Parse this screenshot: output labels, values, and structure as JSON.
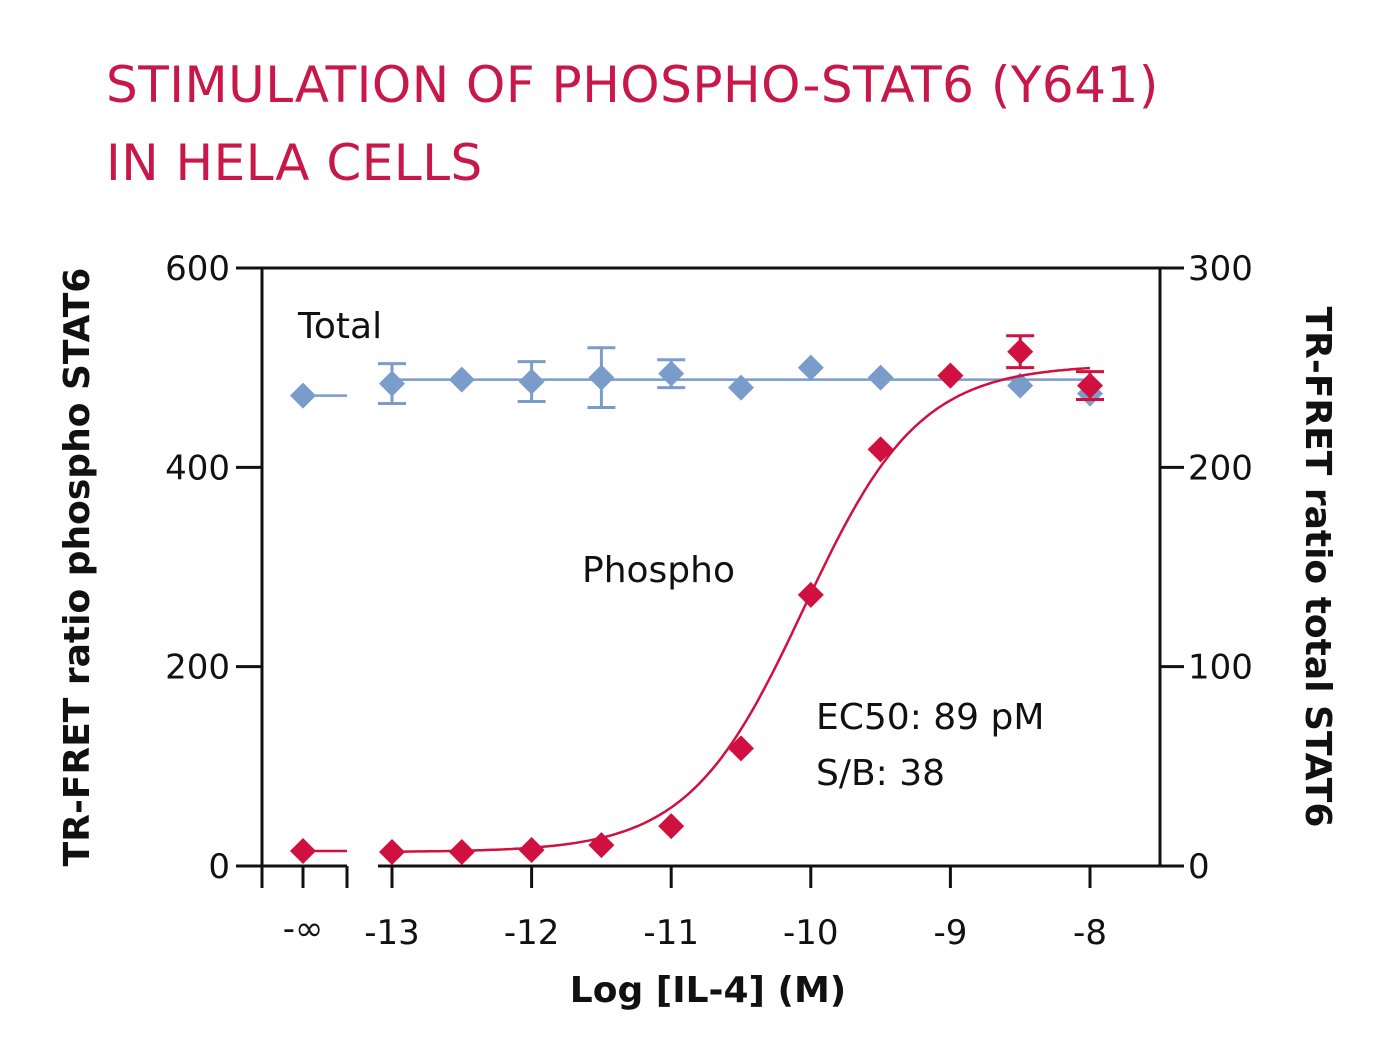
{
  "colors": {
    "title": "#c8184a",
    "phospho": "#d0103f",
    "total": "#7a9ccb",
    "axis": "#111111"
  },
  "title_lines": [
    "STIMULATION OF PHOSPHO-STAT6 (Y641)",
    "IN HELA CELLS"
  ],
  "chart_data": {
    "type": "scatter",
    "title": "STIMULATION OF PHOSPHO-STAT6 (Y641) IN HELA CELLS",
    "xlabel": "Log [IL-4] (M)",
    "ylabel_left": "TR-FRET ratio phospho  STAT6",
    "ylabel_right": "TR-FRET ratio total STAT6",
    "x_ticks": [
      -13,
      -12,
      -11,
      -10,
      -9,
      -8
    ],
    "x_tick_labels": [
      "-13",
      "-12",
      "-11",
      "-10",
      "-9",
      "-8"
    ],
    "x_break_label": "-∞",
    "ylim_left": [
      0,
      600
    ],
    "ylim_right": [
      0,
      300
    ],
    "yticks_left": [
      0,
      200,
      400,
      600
    ],
    "yticks_right": [
      0,
      100,
      200,
      300
    ],
    "grid": false,
    "series": [
      {
        "name": "Phospho",
        "axis": "left",
        "fit": "sigmoidal",
        "baseline_point": {
          "x": "-∞",
          "y": 15
        },
        "x": [
          -13,
          -12.5,
          -12,
          -11.5,
          -11,
          -10.5,
          -10,
          -9.5,
          -9,
          -8.5,
          -8
        ],
        "y": [
          14,
          14,
          16,
          21,
          40,
          118,
          272,
          418,
          492,
          516,
          482
        ],
        "error": [
          0,
          0,
          0,
          0,
          0,
          0,
          0,
          0,
          0,
          16,
          14
        ],
        "fit_params": {
          "bottom": 14,
          "top": 503,
          "log_ec50": -10.05,
          "hill": 1.05
        }
      },
      {
        "name": "Total",
        "axis": "right",
        "fit": "flat",
        "baseline_point": {
          "x": "-∞",
          "y": 236
        },
        "x": [
          -13,
          -12.5,
          -12,
          -11.5,
          -11,
          -10.5,
          -10,
          -9.5,
          -9,
          -8.5,
          -8
        ],
        "y": [
          242,
          244,
          243,
          245,
          247,
          240,
          250,
          245,
          246,
          241,
          237
        ],
        "error": [
          10,
          0,
          10,
          15,
          7,
          0,
          0,
          0,
          0,
          0,
          0
        ],
        "fit_value": 244
      }
    ],
    "annotations": [
      "EC50: 89 pM",
      "S/B: 38"
    ]
  }
}
